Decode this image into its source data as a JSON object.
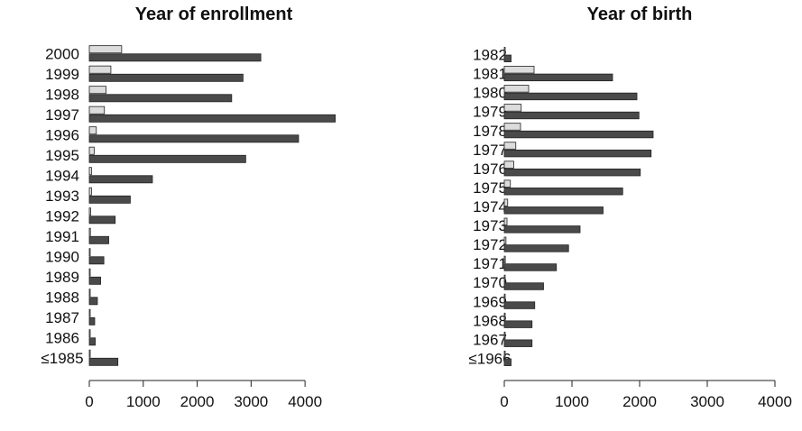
{
  "chart_data": [
    {
      "type": "bar",
      "orientation": "horizontal",
      "title": "Year of enrollment",
      "categories": [
        "2000",
        "1999",
        "1998",
        "1997",
        "1996",
        "1995",
        "1994",
        "1993",
        "1992",
        "1991",
        "1990",
        "1989",
        "1988",
        "1987",
        "1986",
        "≤1985"
      ],
      "series": [
        {
          "values": [
            600,
            400,
            310,
            280,
            130,
            90,
            40,
            40,
            25,
            20,
            15,
            12,
            12,
            10,
            10,
            8
          ]
        },
        {
          "values": [
            3180,
            2850,
            2640,
            4560,
            3880,
            2900,
            1170,
            760,
            480,
            360,
            270,
            210,
            150,
            100,
            110,
            530
          ]
        }
      ],
      "xticks": [
        0,
        1000,
        2000,
        3000,
        4000
      ],
      "xlim": [
        0,
        4600
      ],
      "colors": {
        "light": "#dcdcdc",
        "dark": "#4a4a4a"
      }
    },
    {
      "type": "bar",
      "orientation": "horizontal",
      "title": "Year of birth",
      "categories": [
        "1982",
        "1981",
        "1980",
        "1979",
        "1978",
        "1977",
        "1976",
        "1975",
        "1974",
        "1973",
        "1972",
        "1971",
        "1970",
        "1969",
        "1968",
        "1967",
        "≤1966"
      ],
      "series": [
        {
          "values": [
            10,
            440,
            360,
            250,
            240,
            170,
            140,
            90,
            50,
            40,
            25,
            15,
            12,
            10,
            8,
            8,
            5
          ]
        },
        {
          "values": [
            100,
            1600,
            1960,
            1990,
            2200,
            2170,
            2010,
            1750,
            1460,
            1120,
            950,
            770,
            580,
            450,
            410,
            410,
            100
          ]
        }
      ],
      "xticks": [
        0,
        1000,
        2000,
        3000,
        4000
      ],
      "xlim": [
        0,
        4000
      ],
      "colors": {
        "light": "#dcdcdc",
        "dark": "#4a4a4a"
      }
    }
  ]
}
